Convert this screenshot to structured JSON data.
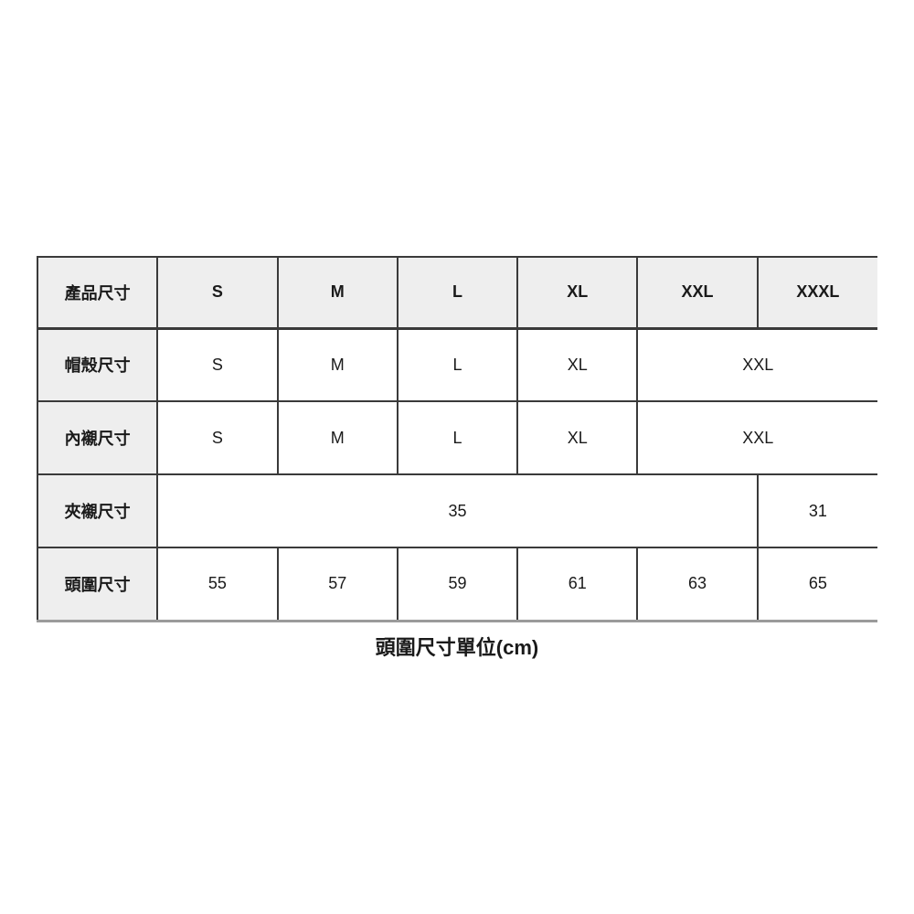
{
  "colors": {
    "page_bg": "#ffffff",
    "header_bg": "#eeeeee",
    "cell_bg": "#ffffff",
    "grid_border": "#3a3a3a",
    "bottom_border": "#9b9b9b",
    "text": "#1a1a1a"
  },
  "size_chart": {
    "header": [
      "產品尺寸",
      "S",
      "M",
      "L",
      "XL",
      "XXL",
      "XXXL"
    ],
    "rows": [
      {
        "label": "帽殼尺寸",
        "cells": [
          {
            "text": "S",
            "span": 1
          },
          {
            "text": "M",
            "span": 1
          },
          {
            "text": "L",
            "span": 1
          },
          {
            "text": "XL",
            "span": 1
          },
          {
            "text": "XXL",
            "span": 2
          }
        ]
      },
      {
        "label": "內襯尺寸",
        "cells": [
          {
            "text": "S",
            "span": 1
          },
          {
            "text": "M",
            "span": 1
          },
          {
            "text": "L",
            "span": 1
          },
          {
            "text": "XL",
            "span": 1
          },
          {
            "text": "XXL",
            "span": 2
          }
        ]
      },
      {
        "label": "夾襯尺寸",
        "cells": [
          {
            "text": "35",
            "span": 5
          },
          {
            "text": "31",
            "span": 1
          }
        ]
      },
      {
        "label": "頭圍尺寸",
        "cells": [
          {
            "text": "55",
            "span": 1
          },
          {
            "text": "57",
            "span": 1
          },
          {
            "text": "59",
            "span": 1
          },
          {
            "text": "61",
            "span": 1
          },
          {
            "text": "63",
            "span": 1
          },
          {
            "text": "65",
            "span": 1
          }
        ]
      }
    ],
    "caption": "頭圍尺寸單位(cm)"
  }
}
